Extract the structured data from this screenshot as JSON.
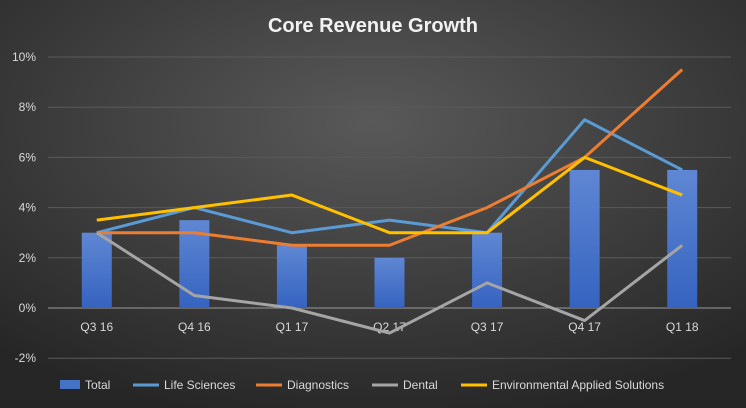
{
  "chart_data": {
    "type": "bar+line",
    "title": "Core Revenue Growth",
    "xlabel": "",
    "ylabel": "",
    "categories": [
      "Q3 16",
      "Q4 16",
      "Q1 17",
      "Q2 17",
      "Q3 17",
      "Q4 17",
      "Q1 18"
    ],
    "ylim": [
      -2,
      10
    ],
    "yticks": [
      -2,
      0,
      2,
      4,
      6,
      8,
      10
    ],
    "ytick_labels": [
      "-2%",
      "0%",
      "2%",
      "4%",
      "6%",
      "8%",
      "10%"
    ],
    "grid": true,
    "legend_position": "bottom",
    "series": [
      {
        "name": "Total",
        "kind": "bar",
        "color": "#4472C4",
        "values": [
          3,
          3.5,
          2.5,
          2,
          3,
          5.5,
          5.5
        ]
      },
      {
        "name": "Life Sciences",
        "kind": "line",
        "color": "#5B9BD5",
        "values": [
          3,
          4,
          3,
          3.5,
          3,
          7.5,
          5.5
        ]
      },
      {
        "name": "Diagnostics",
        "kind": "line",
        "color": "#ED7D31",
        "values": [
          3,
          3,
          2.5,
          2.5,
          4,
          6,
          9.5
        ]
      },
      {
        "name": "Dental",
        "kind": "line",
        "color": "#A5A5A5",
        "values": [
          3,
          0.5,
          0,
          -1,
          1,
          -0.5,
          2.5
        ]
      },
      {
        "name": "Environmental  Applied Solutions",
        "kind": "line",
        "color": "#FFC000",
        "values": [
          3.5,
          4,
          4.5,
          3,
          3,
          6,
          4.5
        ]
      }
    ]
  }
}
